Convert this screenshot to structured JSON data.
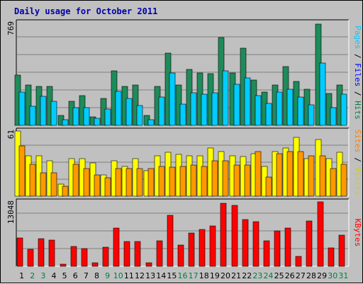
{
  "title": "Daily usage for October 2011",
  "colors": {
    "pages": "#00ccff",
    "pages_shade": "#008fb3",
    "files": "#1e8b5a",
    "files_shade": "#0f5c3a",
    "visits": "#ffff00",
    "visits_shade": "#b3b300",
    "sites": "#ff9900",
    "sites_shade": "#b36b00",
    "kbytes": "#ff0000",
    "kbytes_shade": "#990000",
    "label_pages": "#00ccff",
    "label_files": "#0000ff",
    "label_hits": "#008040",
    "label_sites": "#ff8000",
    "label_visits": "#d0d000",
    "label_kbytes": "#ff0000",
    "weekday": "#000000",
    "weekend": "#008040"
  },
  "chart_data": [
    {
      "type": "bar",
      "panel": "hits-files-pages",
      "ymax_label": "769",
      "ymax": 769,
      "right_label": [
        {
          "text": "Pages",
          "color_key": "label_pages"
        },
        {
          "text": " / ",
          "color_key": "weekday"
        },
        {
          "text": "Files",
          "color_key": "label_files"
        },
        {
          "text": " / ",
          "color_key": "weekday"
        },
        {
          "text": "Hits",
          "color_key": "label_hits"
        }
      ],
      "categories": [
        "1",
        "2",
        "3",
        "4",
        "5",
        "6",
        "7",
        "8",
        "9",
        "10",
        "11",
        "12",
        "13",
        "14",
        "15",
        "16",
        "17",
        "18",
        "19",
        "20",
        "21",
        "22",
        "23",
        "24",
        "25",
        "26",
        "27",
        "28",
        "29",
        "30",
        "31"
      ],
      "weekend": [
        1,
        2,
        8,
        9,
        15,
        16,
        22,
        23,
        29,
        30
      ],
      "series": [
        {
          "name": "Files",
          "color_key": "files",
          "shade_key": "files_shade",
          "values": [
            375,
            300,
            290,
            290,
            72,
            180,
            225,
            65,
            200,
            410,
            290,
            300,
            75,
            290,
            540,
            300,
            420,
            390,
            385,
            655,
            395,
            580,
            340,
            250,
            300,
            440,
            330,
            270,
            760,
            240,
            300
          ]
        },
        {
          "name": "Pages",
          "color_key": "pages",
          "shade_key": "pages_shade",
          "values": [
            250,
            145,
            215,
            180,
            45,
            130,
            135,
            55,
            120,
            255,
            200,
            150,
            45,
            210,
            390,
            160,
            245,
            235,
            245,
            410,
            310,
            355,
            225,
            165,
            250,
            270,
            210,
            155,
            465,
            130,
            235
          ]
        }
      ]
    },
    {
      "type": "bar",
      "panel": "visits-sites",
      "ymax_label": "61",
      "ymax": 61,
      "right_label": [
        {
          "text": "Sites",
          "color_key": "label_sites"
        },
        {
          "text": " / ",
          "color_key": "weekday"
        },
        {
          "text": "Visits",
          "color_key": "label_visits"
        }
      ],
      "categories": [
        "1",
        "2",
        "3",
        "4",
        "5",
        "6",
        "7",
        "8",
        "9",
        "10",
        "11",
        "12",
        "13",
        "14",
        "15",
        "16",
        "17",
        "18",
        "19",
        "20",
        "21",
        "22",
        "23",
        "24",
        "25",
        "26",
        "27",
        "28",
        "29",
        "30",
        "31"
      ],
      "weekend": [
        1,
        2,
        8,
        9,
        15,
        16,
        22,
        23,
        29,
        30
      ],
      "series": [
        {
          "name": "Visits",
          "color_key": "visits",
          "shade_key": "visits_shade",
          "values": [
            61,
            38,
            38,
            33,
            11,
            35,
            35,
            31,
            20,
            33,
            28,
            35,
            24,
            38,
            41,
            39,
            38,
            38,
            45,
            42,
            38,
            37,
            40,
            28,
            42,
            45,
            55,
            35,
            53,
            35,
            41
          ]
        },
        {
          "name": "Sites",
          "color_key": "sites",
          "shade_key": "sites_shade",
          "values": [
            47,
            30,
            22,
            22,
            9,
            30,
            26,
            20,
            17,
            26,
            26,
            26,
            26,
            28,
            27,
            28,
            29,
            28,
            33,
            33,
            29,
            29,
            42,
            18,
            40,
            42,
            42,
            38,
            38,
            26,
            30
          ]
        }
      ]
    },
    {
      "type": "bar",
      "panel": "kbytes",
      "ymax_label": "13048",
      "ymax": 13048,
      "right_label": [
        {
          "text": "KBytes",
          "color_key": "label_kbytes"
        }
      ],
      "categories": [
        "1",
        "2",
        "3",
        "4",
        "5",
        "6",
        "7",
        "8",
        "9",
        "10",
        "11",
        "12",
        "13",
        "14",
        "15",
        "16",
        "17",
        "18",
        "19",
        "20",
        "21",
        "22",
        "23",
        "24",
        "25",
        "26",
        "27",
        "28",
        "29",
        "30",
        "31"
      ],
      "weekend": [
        1,
        2,
        8,
        9,
        15,
        16,
        22,
        23,
        29,
        30
      ],
      "series": [
        {
          "name": "KBytes",
          "color_key": "kbytes",
          "shade_key": "kbytes_shade",
          "values": [
            5700,
            3450,
            5590,
            5320,
            480,
            3960,
            3530,
            780,
            3800,
            7700,
            5020,
            5040,
            720,
            5200,
            10380,
            4350,
            6680,
            7440,
            8220,
            12800,
            12360,
            9400,
            9100,
            5170,
            7120,
            7800,
            2020,
            9200,
            13000,
            3700,
            6290
          ]
        }
      ]
    }
  ]
}
